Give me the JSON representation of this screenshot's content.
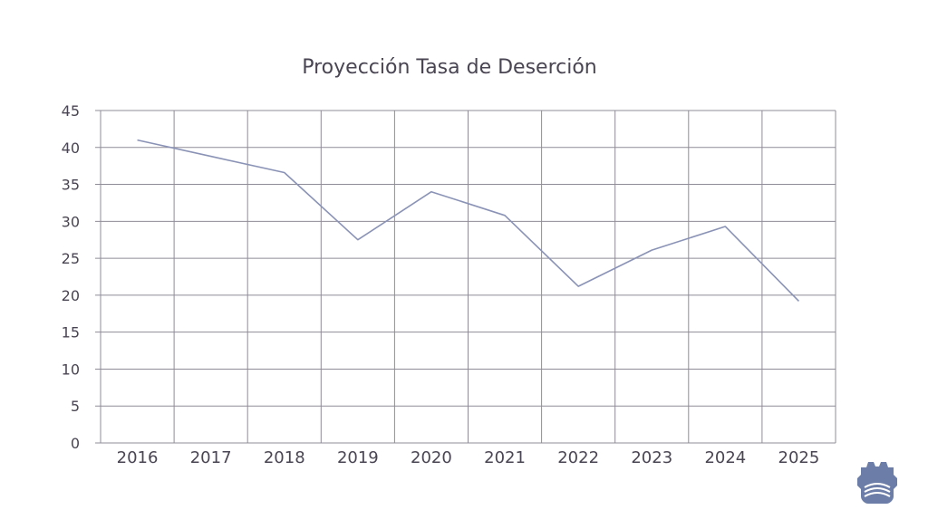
{
  "chart_data": {
    "type": "line",
    "title": "Proyección Tasa de Deserción",
    "xlabel": "",
    "ylabel": "",
    "categories": [
      "2016",
      "2017",
      "2018",
      "2019",
      "2020",
      "2021",
      "2022",
      "2023",
      "2024",
      "2025"
    ],
    "series": [
      {
        "values": [
          41.0,
          38.8,
          36.6,
          27.5,
          34.0,
          30.8,
          21.2,
          26.1,
          29.3,
          19.2
        ],
        "color": "#8a93b6"
      }
    ],
    "ylim": [
      0,
      45
    ],
    "yticks": [
      "0",
      "5",
      "10",
      "15",
      "20",
      "25",
      "30",
      "35",
      "40",
      "45"
    ],
    "grid": true,
    "legend": "none"
  },
  "logo": {
    "icon": "gear-logo-icon",
    "color": "#6c7ea8"
  }
}
